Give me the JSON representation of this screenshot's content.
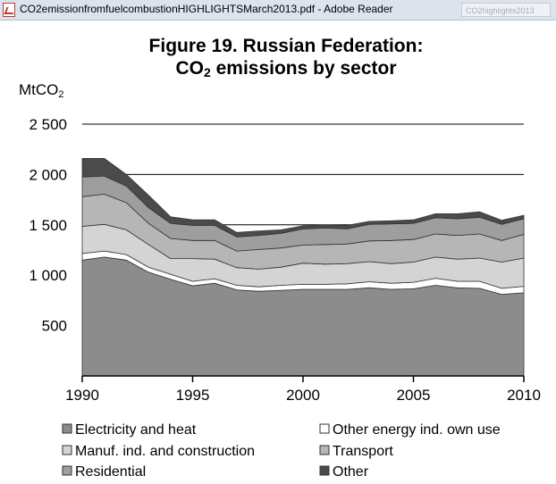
{
  "window": {
    "title": "CO2emissionfromfuelcombustionHIGHLIGHTSMarch2013.pdf - Adobe Reader",
    "search_placeholder": "CO2highlights2013"
  },
  "figure": {
    "title_line1": "Figure 19. Russian Federation:",
    "title_line2_pre": "CO",
    "title_line2_sub": "2",
    "title_line2_post": " emissions by sector",
    "unit_main": "MtCO",
    "unit_sub": "2"
  },
  "chart_data": {
    "type": "area",
    "stacked": true,
    "x": [
      1990,
      1991,
      1992,
      1993,
      1994,
      1995,
      1996,
      1997,
      1998,
      1999,
      2000,
      2001,
      2002,
      2003,
      2004,
      2005,
      2006,
      2007,
      2008,
      2009,
      2010
    ],
    "xticks": [
      "1990",
      "1995",
      "2000",
      "2005",
      "2010"
    ],
    "xlim": [
      1990,
      2010
    ],
    "ylim": [
      0,
      2500
    ],
    "yticks": [
      500,
      1000,
      1500,
      2000,
      2500
    ],
    "ytick_labels": [
      "500",
      "1 000",
      "1 500",
      "2 000",
      "2 500"
    ],
    "ylabel": "MtCO2",
    "grid": "horizontal",
    "legend_position": "bottom",
    "series": [
      {
        "name": "Electricity and heat",
        "color": "#8c8c8c",
        "values": [
          1150,
          1180,
          1150,
          1030,
          960,
          895,
          920,
          855,
          840,
          850,
          860,
          860,
          860,
          875,
          860,
          865,
          900,
          875,
          870,
          810,
          825
        ]
      },
      {
        "name": "Other energy ind. own use",
        "color": "#ffffff",
        "values": [
          65,
          60,
          55,
          50,
          50,
          45,
          45,
          45,
          45,
          50,
          50,
          50,
          55,
          60,
          60,
          65,
          70,
          65,
          70,
          60,
          65
        ]
      },
      {
        "name": "Manuf. ind. and construction",
        "color": "#d4d4d4",
        "values": [
          270,
          265,
          245,
          225,
          155,
          225,
          195,
          175,
          175,
          180,
          210,
          200,
          200,
          200,
          195,
          200,
          210,
          220,
          230,
          260,
          280
        ]
      },
      {
        "name": "Transport",
        "color": "#b6b6b6",
        "values": [
          295,
          300,
          270,
          210,
          200,
          180,
          185,
          165,
          195,
          190,
          180,
          195,
          195,
          205,
          230,
          225,
          230,
          235,
          240,
          215,
          235
        ]
      },
      {
        "name": "Residential",
        "color": "#9e9e9e",
        "values": [
          195,
          180,
          165,
          155,
          150,
          150,
          150,
          140,
          140,
          145,
          160,
          165,
          150,
          165,
          165,
          160,
          160,
          165,
          165,
          160,
          155
        ]
      },
      {
        "name": "Other",
        "color": "#4b4b4b",
        "values": [
          185,
          175,
          115,
          125,
          65,
          55,
          55,
          45,
          45,
          35,
          30,
          30,
          35,
          30,
          30,
          35,
          40,
          50,
          55,
          40,
          35
        ]
      }
    ]
  }
}
